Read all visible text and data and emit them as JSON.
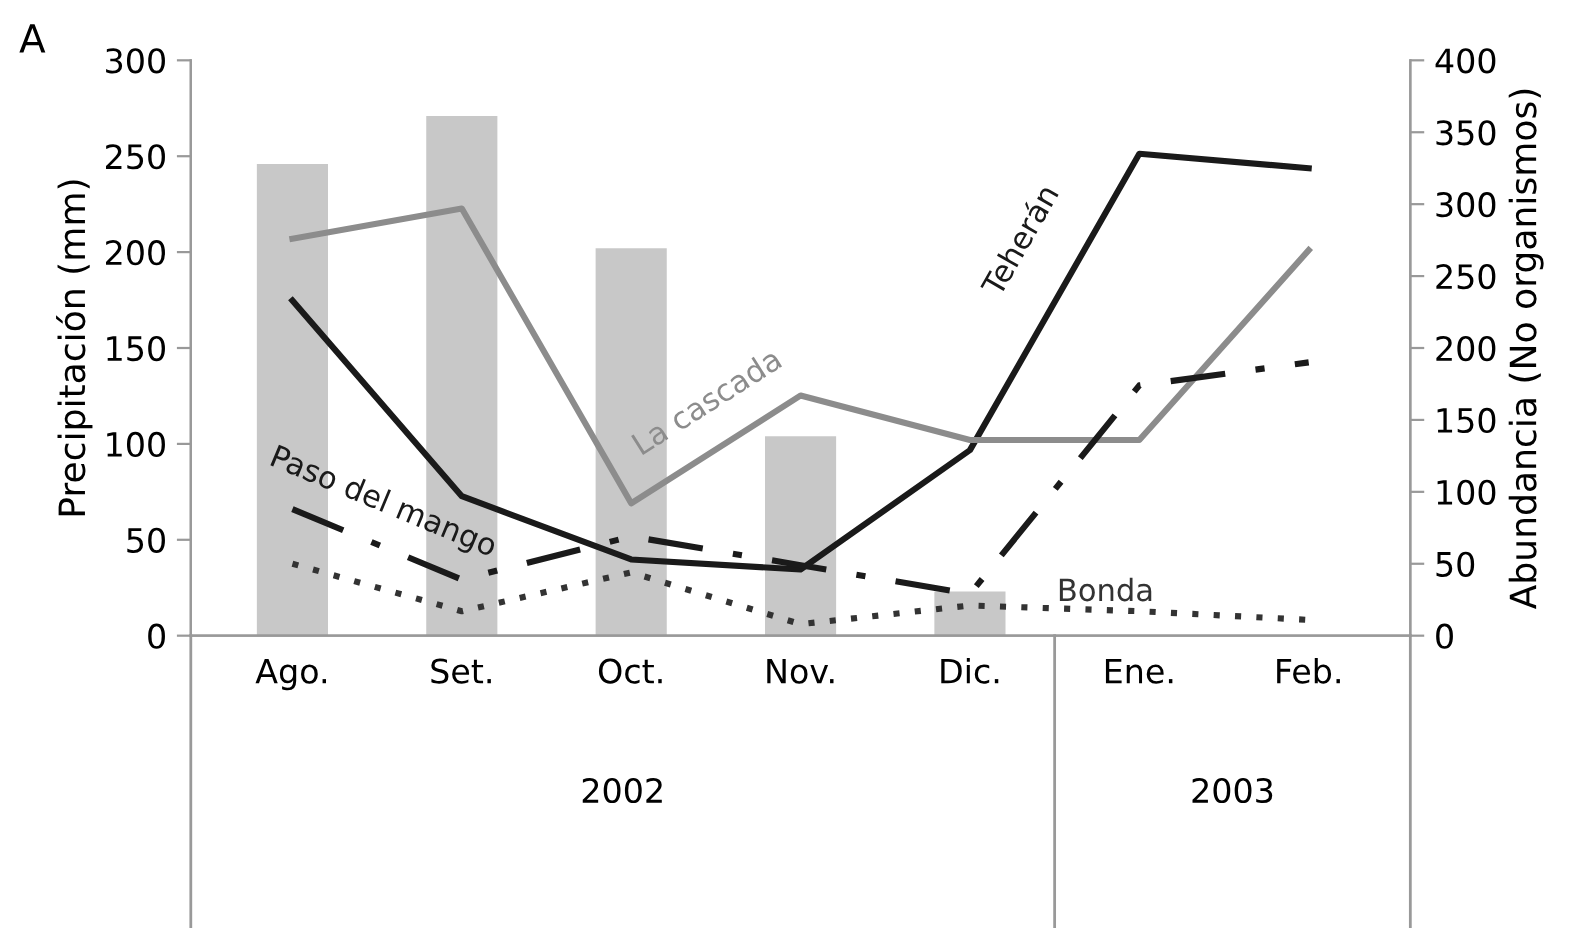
{
  "chart_data": {
    "type": "line",
    "categories": [
      "Ago.",
      "Set.",
      "Oct.",
      "Nov.",
      "Dic.",
      "Ene.",
      "Feb."
    ],
    "ylabel": "Precipitación (mm)",
    "y2label": "Abundancia (No organismos)",
    "ylim": [
      0,
      300
    ],
    "yticks": [
      0,
      50,
      100,
      150,
      200,
      250,
      300
    ],
    "y2lim": [
      0,
      400
    ],
    "y2ticks": [
      0,
      50,
      100,
      150,
      200,
      250,
      300,
      350,
      400
    ],
    "grid": false,
    "series": [
      {
        "type": "bar",
        "axis": "y",
        "color": "#c8c8c8",
        "values": [
          246,
          271,
          202,
          104,
          23,
          null,
          null
        ]
      },
      {
        "name": "Teherán",
        "axis": "y2",
        "color": "#1a1a1a",
        "line_style": "solid",
        "values": [
          233,
          97,
          53,
          46,
          129,
          335,
          325
        ]
      },
      {
        "name": "La cascada",
        "axis": "y2",
        "color": "#8c8c8c",
        "line_style": "solid",
        "values": [
          276,
          297,
          92,
          167,
          136,
          136,
          268
        ]
      },
      {
        "name": "Paso del mango",
        "axis": "y2",
        "color": "#1a1a1a",
        "line_style": "dashdot",
        "values": [
          88,
          39,
          69,
          49,
          29,
          174,
          190
        ]
      },
      {
        "name": "Bonda",
        "axis": "y2",
        "color": "#333333",
        "line_style": "dotted",
        "values": [
          50,
          17,
          44,
          8,
          21,
          17,
          11
        ]
      }
    ],
    "annotations": [
      "A",
      "2002",
      "2003"
    ]
  }
}
